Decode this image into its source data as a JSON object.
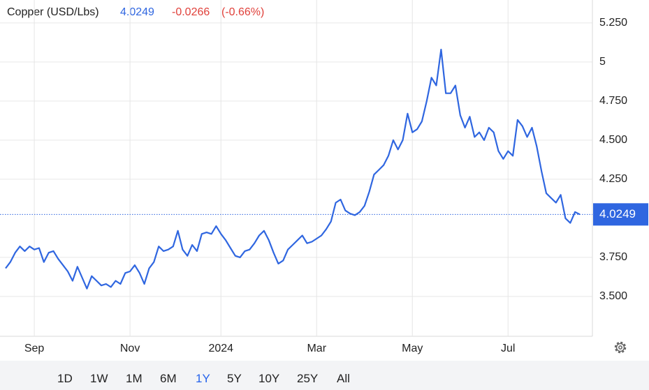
{
  "chart_data": {
    "type": "line",
    "title": "Copper (USD/Lbs)",
    "last": 4.0249,
    "change": -0.0266,
    "change_percent": "(-0.66%)",
    "categories": [
      null,
      null,
      null,
      null,
      null,
      null,
      "Sep",
      null,
      null,
      null,
      null,
      null,
      null,
      null,
      null,
      null,
      null,
      null,
      null,
      null,
      null,
      null,
      null,
      null,
      null,
      null,
      "Nov",
      null,
      null,
      null,
      null,
      null,
      null,
      null,
      null,
      null,
      null,
      null,
      null,
      null,
      null,
      null,
      null,
      null,
      null,
      "2024",
      null,
      null,
      null,
      null,
      null,
      null,
      null,
      null,
      null,
      null,
      null,
      null,
      null,
      null,
      null,
      null,
      null,
      null,
      null,
      "Mar",
      null,
      null,
      null,
      null,
      null,
      null,
      null,
      null,
      null,
      null,
      null,
      null,
      null,
      null,
      null,
      null,
      null,
      null,
      null,
      "May",
      null,
      null,
      null,
      null,
      null,
      null,
      null,
      null,
      null,
      null,
      null,
      null,
      null,
      null,
      null,
      null,
      null,
      null,
      null,
      "Jul",
      null,
      null,
      null,
      null,
      null,
      null,
      null,
      null,
      null,
      null,
      null,
      null,
      null,
      null,
      null
    ],
    "series": [
      {
        "name": "Copper",
        "color": "#2f66e0",
        "values": [
          3.68,
          3.72,
          3.78,
          3.82,
          3.79,
          3.82,
          3.8,
          3.81,
          3.72,
          3.78,
          3.79,
          3.74,
          3.7,
          3.66,
          3.6,
          3.69,
          3.62,
          3.55,
          3.63,
          3.6,
          3.57,
          3.58,
          3.56,
          3.6,
          3.58,
          3.65,
          3.66,
          3.7,
          3.65,
          3.58,
          3.68,
          3.72,
          3.82,
          3.79,
          3.8,
          3.82,
          3.92,
          3.8,
          3.76,
          3.83,
          3.79,
          3.9,
          3.91,
          3.9,
          3.95,
          3.9,
          3.86,
          3.81,
          3.76,
          3.75,
          3.79,
          3.8,
          3.84,
          3.89,
          3.92,
          3.86,
          3.78,
          3.71,
          3.73,
          3.8,
          3.83,
          3.86,
          3.89,
          3.84,
          3.85,
          3.87,
          3.89,
          3.93,
          3.98,
          4.1,
          4.12,
          4.05,
          4.03,
          4.02,
          4.04,
          4.08,
          4.17,
          4.28,
          4.31,
          4.34,
          4.4,
          4.5,
          4.44,
          4.5,
          4.67,
          4.55,
          4.57,
          4.62,
          4.75,
          4.9,
          4.85,
          5.08,
          4.8,
          4.8,
          4.85,
          4.66,
          4.58,
          4.65,
          4.52,
          4.55,
          4.5,
          4.58,
          4.55,
          4.43,
          4.38,
          4.43,
          4.4,
          4.63,
          4.59,
          4.52,
          4.58,
          4.46,
          4.3,
          4.16,
          4.13,
          4.1,
          4.15,
          4.0,
          3.97,
          4.04,
          4.0249
        ]
      }
    ],
    "ylim": [
      3.245,
      5.397
    ],
    "yticks": [
      {
        "value": 5.25,
        "label": "5.250"
      },
      5,
      {
        "value": 4.75,
        "label": "4.750"
      },
      {
        "value": 4.5,
        "label": "4.500"
      },
      {
        "value": 4.25,
        "label": "4.250"
      },
      {
        "value": 3.75,
        "label": "3.750"
      },
      {
        "value": 3.5,
        "label": "3.500"
      }
    ],
    "grid": true,
    "ranges": [
      "1D",
      "1W",
      "1M",
      "6M",
      "1Y",
      "5Y",
      "10Y",
      "25Y",
      "All"
    ]
  }
}
